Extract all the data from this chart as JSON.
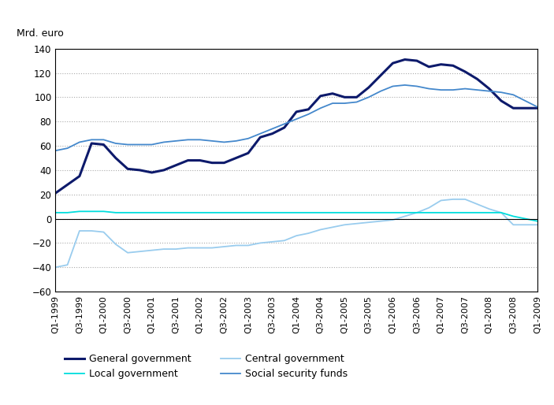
{
  "ylabel_text": "Mrd. euro",
  "ylim": [
    -60,
    140
  ],
  "yticks": [
    -60,
    -40,
    -20,
    0,
    20,
    40,
    60,
    80,
    100,
    120,
    140
  ],
  "x_labels": [
    "Q1-1999",
    "Q3-1999",
    "Q1-2000",
    "Q3-2000",
    "Q1-2001",
    "Q3-2001",
    "Q1-2002",
    "Q3-2002",
    "Q1-2003",
    "Q3-2003",
    "Q1-2004",
    "Q3-2004",
    "Q1-2005",
    "Q3-2005",
    "Q1-2006",
    "Q3-2006",
    "Q1-2007",
    "Q3-2007",
    "Q1-2008",
    "Q3-2008",
    "Q1-2009"
  ],
  "x_label_indices": [
    0,
    2,
    4,
    6,
    8,
    10,
    12,
    14,
    16,
    18,
    20,
    22,
    24,
    26,
    28,
    30,
    32,
    34,
    36,
    38,
    40
  ],
  "general_government": [
    21,
    28,
    35,
    62,
    61,
    50,
    41,
    40,
    38,
    40,
    44,
    48,
    48,
    46,
    46,
    50,
    54,
    67,
    70,
    75,
    88,
    90,
    101,
    103,
    100,
    100,
    108,
    118,
    128,
    131,
    130,
    125,
    127,
    126,
    121,
    115,
    107,
    97,
    91,
    91,
    91
  ],
  "central_government": [
    -40,
    -38,
    -10,
    -10,
    -11,
    -21,
    -28,
    -27,
    -26,
    -25,
    -25,
    -24,
    -24,
    -24,
    -23,
    -22,
    -22,
    -20,
    -19,
    -18,
    -14,
    -12,
    -9,
    -7,
    -5,
    -4,
    -3,
    -2,
    -1,
    2,
    5,
    9,
    15,
    16,
    16,
    12,
    8,
    5,
    -5,
    -5,
    -5
  ],
  "local_government": [
    5,
    5,
    6,
    6,
    6,
    5,
    5,
    5,
    5,
    5,
    5,
    5,
    5,
    5,
    5,
    5,
    5,
    5,
    5,
    5,
    5,
    5,
    5,
    5,
    5,
    5,
    5,
    5,
    5,
    5,
    5,
    5,
    5,
    5,
    5,
    5,
    5,
    5,
    2,
    0,
    -2
  ],
  "social_security_funds": [
    56,
    58,
    63,
    65,
    65,
    62,
    61,
    61,
    61,
    63,
    64,
    65,
    65,
    64,
    63,
    64,
    66,
    70,
    74,
    78,
    82,
    86,
    91,
    95,
    95,
    96,
    100,
    105,
    109,
    110,
    109,
    107,
    106,
    106,
    107,
    106,
    105,
    104,
    102,
    97,
    92
  ],
  "colors": {
    "general_government": "#0d1a6b",
    "central_government": "#99ccee",
    "local_government": "#00dddd",
    "social_security_funds": "#4488cc"
  },
  "linewidths": {
    "general_government": 2.2,
    "central_government": 1.3,
    "local_government": 1.3,
    "social_security_funds": 1.3
  }
}
